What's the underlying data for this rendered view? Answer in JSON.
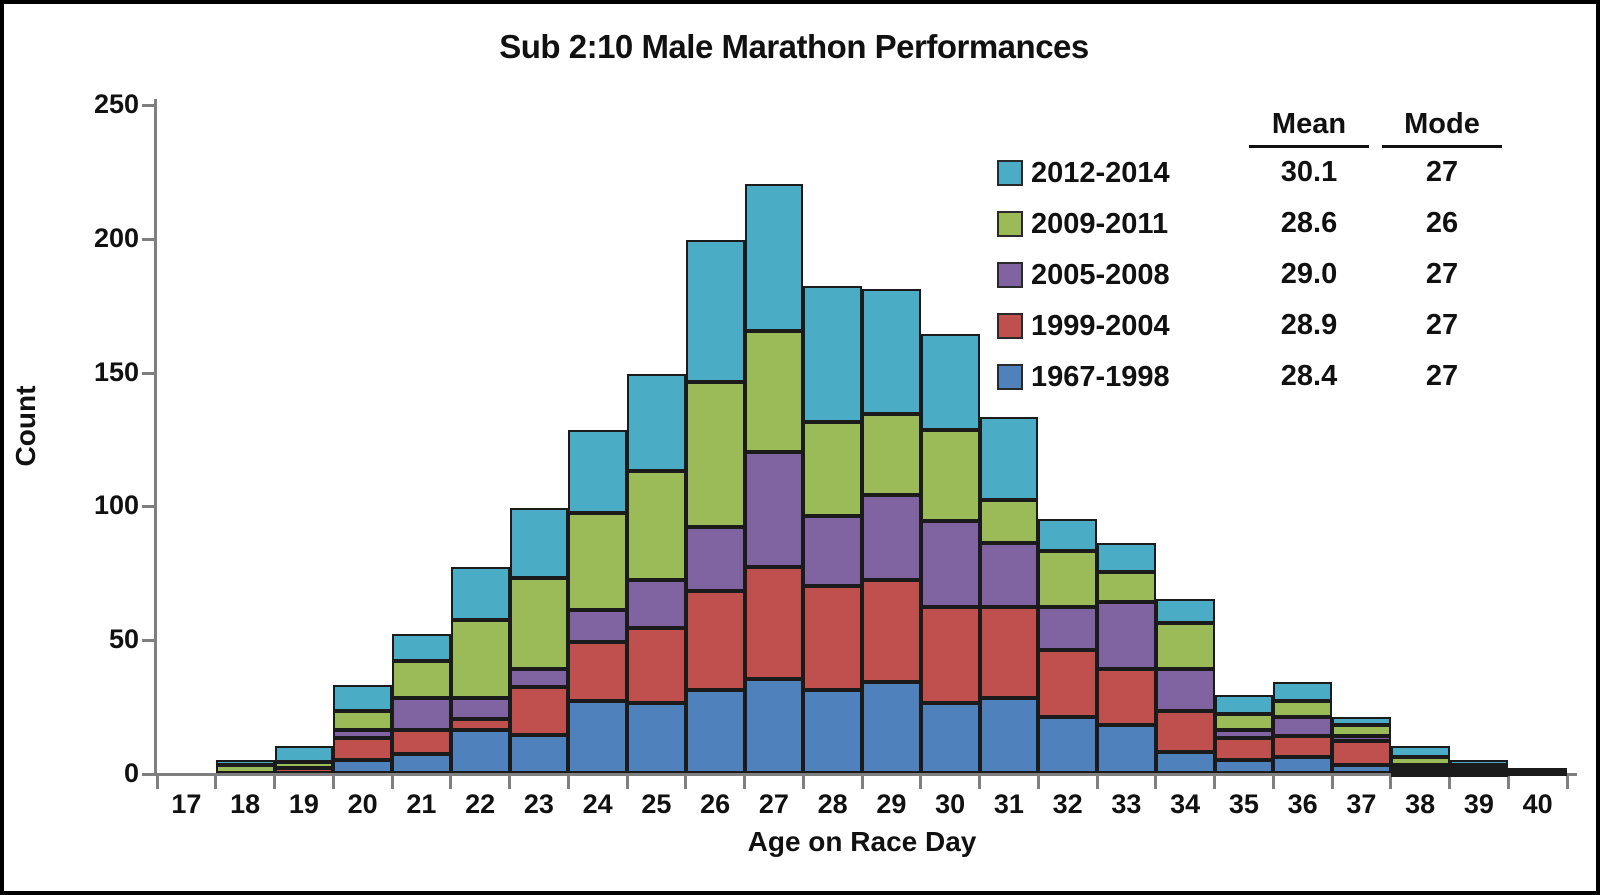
{
  "title": "Sub 2:10 Male Marathon Performances",
  "axes": {
    "y_label": "Count",
    "x_label": "Age on Race Day",
    "y_ticks": [
      0,
      50,
      100,
      150,
      200,
      250
    ],
    "y_max": 250
  },
  "legend": {
    "mean_header": "Mean",
    "mode_header": "Mode",
    "entries": [
      {
        "label": "2012-2014",
        "color": "#4BACC6",
        "mean": "30.1",
        "mode": "27"
      },
      {
        "label": "2009-2011",
        "color": "#9BBB59",
        "mean": "28.6",
        "mode": "26"
      },
      {
        "label": "2005-2008",
        "color": "#8064A2",
        "mean": "29.0",
        "mode": "27"
      },
      {
        "label": "1999-2004",
        "color": "#C0504D",
        "mean": "28.9",
        "mode": "27"
      },
      {
        "label": "1967-1998",
        "color": "#4F81BD",
        "mean": "28.4",
        "mode": "27"
      }
    ]
  },
  "chart_data": {
    "type": "bar",
    "stacked": true,
    "title": "Sub 2:10 Male Marathon Performances",
    "xlabel": "Age on Race Day",
    "ylabel": "Count",
    "ylim": [
      0,
      250
    ],
    "grid": false,
    "legend_position": "upper right",
    "categories": [
      17,
      18,
      19,
      20,
      21,
      22,
      23,
      24,
      25,
      26,
      27,
      28,
      29,
      30,
      31,
      32,
      33,
      34,
      35,
      36,
      37,
      38,
      39,
      40
    ],
    "series": [
      {
        "name": "1967-1998",
        "color": "#4F81BD",
        "values": [
          0,
          0,
          0,
          5,
          7,
          16,
          14,
          27,
          26,
          31,
          35,
          31,
          34,
          26,
          28,
          21,
          18,
          8,
          5,
          6,
          3,
          1,
          1,
          0
        ]
      },
      {
        "name": "1999-2004",
        "color": "#C0504D",
        "values": [
          0,
          0,
          2,
          8,
          9,
          4,
          18,
          22,
          28,
          37,
          42,
          39,
          38,
          36,
          34,
          25,
          21,
          15,
          8,
          8,
          9,
          1,
          1,
          1
        ]
      },
      {
        "name": "2005-2008",
        "color": "#8064A2",
        "values": [
          0,
          0,
          0,
          3,
          12,
          8,
          7,
          12,
          18,
          24,
          43,
          26,
          32,
          32,
          24,
          16,
          25,
          16,
          3,
          7,
          2,
          1,
          0,
          0
        ]
      },
      {
        "name": "2009-2011",
        "color": "#9BBB59",
        "values": [
          0,
          3,
          2,
          7,
          14,
          29,
          34,
          36,
          41,
          54,
          45,
          35,
          30,
          34,
          16,
          21,
          11,
          17,
          6,
          6,
          4,
          3,
          1,
          0
        ]
      },
      {
        "name": "2012-2014",
        "color": "#4BACC6",
        "values": [
          0,
          2,
          6,
          10,
          10,
          20,
          26,
          31,
          36,
          53,
          55,
          51,
          47,
          36,
          31,
          12,
          11,
          9,
          7,
          7,
          3,
          4,
          2,
          1
        ]
      }
    ],
    "totals": [
      0,
      5,
      10,
      33,
      52,
      77,
      99,
      128,
      149,
      199,
      220,
      182,
      181,
      164,
      133,
      95,
      86,
      65,
      29,
      34,
      21,
      10,
      5,
      2
    ]
  }
}
